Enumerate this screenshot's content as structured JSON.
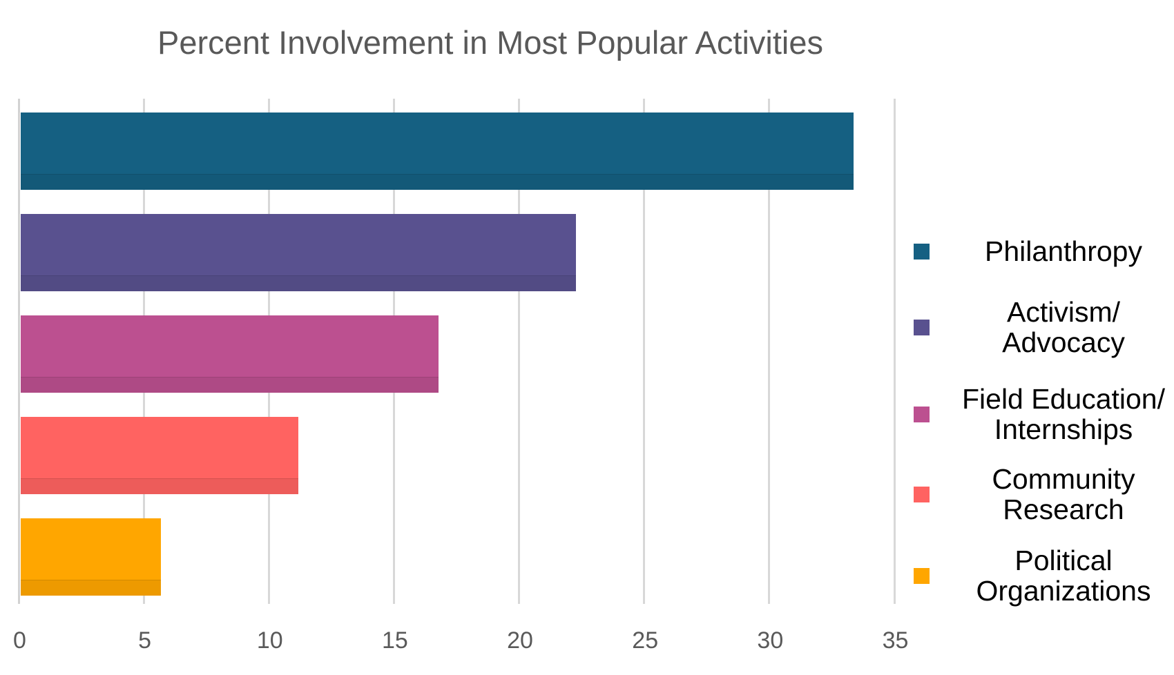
{
  "chart_data": {
    "type": "bar",
    "orientation": "horizontal",
    "title": "Percent Involvement in Most Popular Activities",
    "categories": [
      "Philanthropy",
      "Activism/Advocacy",
      "Field Education/Internships",
      "Community Research",
      "Political Organizations"
    ],
    "values": [
      33.3,
      22.2,
      16.7,
      11.1,
      5.6
    ],
    "series": [
      {
        "name": "Percent Involvement",
        "values": [
          33.3,
          22.2,
          16.7,
          11.1,
          5.6
        ]
      }
    ],
    "colors": [
      "#156082",
      "#59518F",
      "#BC5090",
      "#FF6361",
      "#FFA600"
    ],
    "x_ticks": [
      0,
      5,
      10,
      15,
      20,
      25,
      30,
      35
    ],
    "x_tick_labels": [
      "0",
      "5",
      "10",
      "15",
      "20",
      "25",
      "30",
      "35"
    ],
    "xlim": [
      0,
      35
    ],
    "xlabel": "",
    "ylabel": "",
    "grid": "vertical-only",
    "legend_position": "right",
    "legend_labels": [
      "Philanthropy",
      "Activism/\nAdvocacy",
      "Field Education/\nInternships",
      "Community\nResearch",
      "Political\nOrganizations"
    ]
  },
  "style": {
    "title_color": "#595959",
    "axis_label_color": "#595959",
    "gridline_color": "#D8D8D8",
    "legend_text_color": "#000000",
    "background": "#FFFFFF"
  }
}
